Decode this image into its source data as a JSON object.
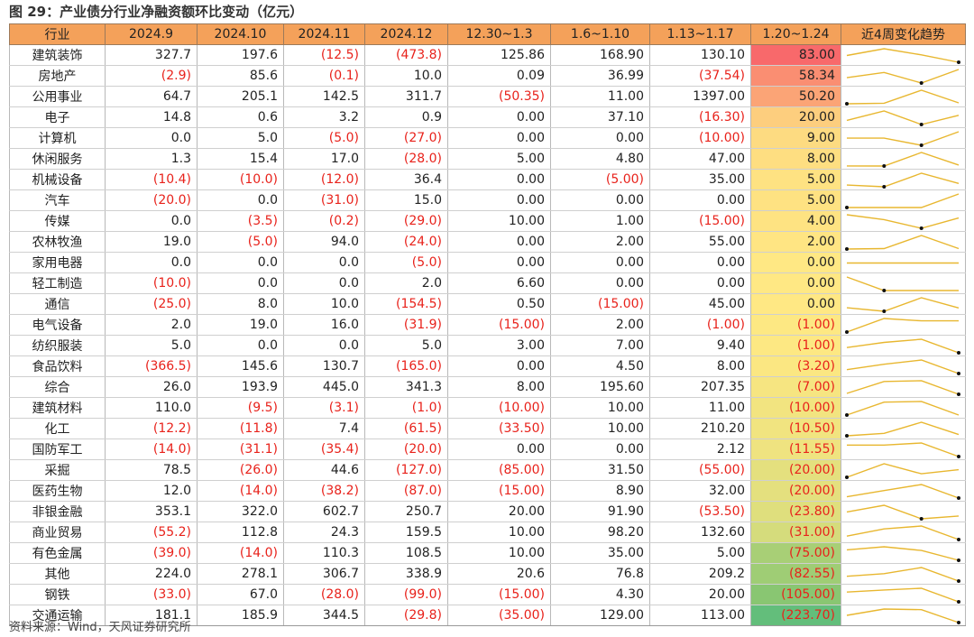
{
  "title": "图 29：产业债分行业净融资额环比变动（亿元）",
  "source": "资料来源：Wind，天风证券研究所",
  "headers": [
    "行业",
    "2024.9",
    "2024.10",
    "2024.11",
    "2024.12",
    "12.30~1.3",
    "1.6~1.10",
    "1.13~1.17",
    "1.20~1.24",
    "近4周变化趋势"
  ],
  "rows": [
    {
      "industry": "建筑装饰",
      "values": [
        "327.7",
        "197.6",
        "(12.5)",
        "(473.8)",
        "125.86",
        "168.90",
        "130.10",
        "83.00"
      ],
      "color": "#f8696b"
    },
    {
      "industry": "房地产",
      "values": [
        "(2.9)",
        "85.6",
        "(0.1)",
        "10.0",
        "0.09",
        "36.99",
        "(37.54)",
        "58.34"
      ],
      "color": "#fa8e72"
    },
    {
      "industry": "公用事业",
      "values": [
        "64.7",
        "205.1",
        "142.5",
        "311.7",
        "(50.35)",
        "11.00",
        "1397.00",
        "50.20"
      ],
      "color": "#fba476"
    },
    {
      "industry": "电子",
      "values": [
        "14.8",
        "0.6",
        "3.2",
        "0.9",
        "0.00",
        "37.10",
        "(16.30)",
        "20.00"
      ],
      "color": "#fdce7e"
    },
    {
      "industry": "计算机",
      "values": [
        "0.0",
        "5.0",
        "(5.0)",
        "(27.0)",
        "0.00",
        "0.00",
        "(10.00)",
        "9.00"
      ],
      "color": "#fddb81"
    },
    {
      "industry": "休闲服务",
      "values": [
        "1.3",
        "15.4",
        "17.0",
        "(28.0)",
        "5.00",
        "4.80",
        "47.00",
        "8.00"
      ],
      "color": "#fede81"
    },
    {
      "industry": "机械设备",
      "values": [
        "(10.4)",
        "(10.0)",
        "(12.0)",
        "36.4",
        "0.00",
        "(5.00)",
        "35.00",
        "5.00"
      ],
      "color": "#fee282"
    },
    {
      "industry": "汽车",
      "values": [
        "(20.0)",
        "0.0",
        "(31.0)",
        "15.0",
        "0.00",
        "0.00",
        "0.00",
        "5.00"
      ],
      "color": "#fee282"
    },
    {
      "industry": "传媒",
      "values": [
        "0.0",
        "(3.5)",
        "(0.2)",
        "(29.0)",
        "10.00",
        "1.00",
        "(15.00)",
        "4.00"
      ],
      "color": "#fee382"
    },
    {
      "industry": "农林牧渔",
      "values": [
        "19.0",
        "(5.0)",
        "94.0",
        "(24.0)",
        "0.00",
        "2.00",
        "55.00",
        "2.00"
      ],
      "color": "#ffe583"
    },
    {
      "industry": "家用电器",
      "values": [
        "0.0",
        "0.0",
        "0.0",
        "(5.0)",
        "0.00",
        "0.00",
        "0.00",
        "0.00"
      ],
      "color": "#ffe884"
    },
    {
      "industry": "轻工制造",
      "values": [
        "(10.0)",
        "0.0",
        "0.0",
        "2.0",
        "6.60",
        "0.00",
        "0.00",
        "0.00"
      ],
      "color": "#ffe884"
    },
    {
      "industry": "通信",
      "values": [
        "(25.0)",
        "8.0",
        "10.0",
        "(154.5)",
        "0.50",
        "(15.00)",
        "45.00",
        "0.00"
      ],
      "color": "#ffe884"
    },
    {
      "industry": "电气设备",
      "values": [
        "2.0",
        "19.0",
        "16.0",
        "(31.9)",
        "(15.00)",
        "2.00",
        "(1.00)",
        "(1.00)"
      ],
      "color": "#fde883"
    },
    {
      "industry": "纺织服装",
      "values": [
        "5.0",
        "0.0",
        "0.0",
        "5.0",
        "3.00",
        "7.00",
        "9.40",
        "(1.00)"
      ],
      "color": "#fde883"
    },
    {
      "industry": "食品饮料",
      "values": [
        "(366.5)",
        "145.6",
        "130.7",
        "(165.0)",
        "0.00",
        "4.50",
        "8.00",
        "(3.20)"
      ],
      "color": "#fbe782"
    },
    {
      "industry": "综合",
      "values": [
        "26.0",
        "193.9",
        "445.0",
        "341.3",
        "8.00",
        "195.60",
        "207.35",
        "(7.00)"
      ],
      "color": "#f6e581"
    },
    {
      "industry": "建筑材料",
      "values": [
        "110.0",
        "(9.5)",
        "(3.1)",
        "(1.0)",
        "(10.00)",
        "10.00",
        "11.00",
        "(10.00)"
      ],
      "color": "#f2e480"
    },
    {
      "industry": "化工",
      "values": [
        "(12.2)",
        "(11.8)",
        "7.4",
        "(61.5)",
        "(33.50)",
        "10.00",
        "210.20",
        "(10.50)"
      ],
      "color": "#f1e480"
    },
    {
      "industry": "国防军工",
      "values": [
        "(14.0)",
        "(31.1)",
        "(35.4)",
        "(20.0)",
        "0.00",
        "0.00",
        "2.12",
        "(11.55)"
      ],
      "color": "#efe380"
    },
    {
      "industry": "采掘",
      "values": [
        "78.5",
        "(26.0)",
        "44.6",
        "(127.0)",
        "(85.00)",
        "31.50",
        "(55.00)",
        "(20.00)"
      ],
      "color": "#e4e07e"
    },
    {
      "industry": "医药生物",
      "values": [
        "12.0",
        "(14.0)",
        "(38.2)",
        "(87.0)",
        "(15.00)",
        "8.90",
        "32.00",
        "(20.00)"
      ],
      "color": "#e4e07e"
    },
    {
      "industry": "非银金融",
      "values": [
        "353.1",
        "322.0",
        "602.7",
        "250.7",
        "20.00",
        "91.90",
        "(53.50)",
        "(23.80)"
      ],
      "color": "#dfdf7d"
    },
    {
      "industry": "商业贸易",
      "values": [
        "(55.2)",
        "112.8",
        "24.3",
        "159.5",
        "10.00",
        "98.20",
        "132.60",
        "(31.00)"
      ],
      "color": "#d5dc7c"
    },
    {
      "industry": "有色金属",
      "values": [
        "(39.0)",
        "(14.0)",
        "110.3",
        "108.5",
        "10.00",
        "35.00",
        "5.00",
        "(75.00)"
      ],
      "color": "#a8cf76"
    },
    {
      "industry": "其他",
      "values": [
        "224.0",
        "278.1",
        "306.7",
        "338.9",
        "20.6",
        "76.8",
        "209.2",
        "(82.55)"
      ],
      "color": "#9fcd75"
    },
    {
      "industry": "钢铁",
      "values": [
        "(33.0)",
        "67.0",
        "(28.0)",
        "(99.0)",
        "(15.00)",
        "4.30",
        "20.00",
        "(105.00)"
      ],
      "color": "#89c672"
    },
    {
      "industry": "交通运输",
      "values": [
        "181.1",
        "185.9",
        "344.5",
        "(29.8)",
        "(35.00)",
        "129.00",
        "113.00",
        "(223.70)"
      ],
      "color": "#63be7b"
    }
  ]
}
